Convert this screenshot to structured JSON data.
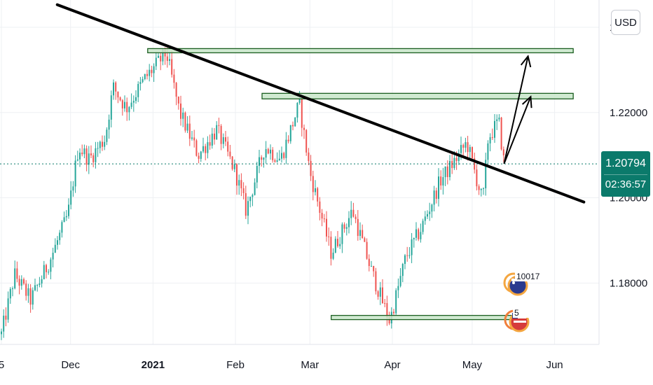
{
  "currency": "USD",
  "current_price": {
    "label": "1.20794",
    "countdown": "02:36:57",
    "color": "#0b7a6b"
  },
  "event_badges": [
    {
      "name": "event-badge-1",
      "count": "10017",
      "flag": "US"
    },
    {
      "name": "event-badge-2",
      "count": "5",
      "flag": "US"
    }
  ],
  "colors": {
    "candle_up": "#26a69a",
    "candle_down": "#ef5350",
    "trendline": "#000000",
    "zone_fill": "#c8e6c9",
    "zone_border": "#1b5e20",
    "grid": "#eef0f3"
  },
  "chart_data": {
    "type": "candlestick",
    "instrument_quote": "USD",
    "y_ticks": [
      "1.2…0",
      "1.22000",
      "1.20000",
      "1.18000"
    ],
    "ylim": [
      1.1656,
      1.2464
    ],
    "x_ticks": [
      "5",
      "Dec",
      "2021",
      "Feb",
      "Mar",
      "Apr",
      "May",
      "Jun"
    ],
    "grid": true,
    "last_price": 1.20794,
    "price_path": [
      {
        "date": "2020-11-05",
        "price": 1.168
      },
      {
        "date": "2020-11-10",
        "price": 1.182
      },
      {
        "date": "2020-11-16",
        "price": 1.176
      },
      {
        "date": "2020-11-23",
        "price": 1.185
      },
      {
        "date": "2020-11-30",
        "price": 1.196
      },
      {
        "date": "2020-12-04",
        "price": 1.212
      },
      {
        "date": "2020-12-08",
        "price": 1.209
      },
      {
        "date": "2020-12-14",
        "price": 1.214
      },
      {
        "date": "2020-12-17",
        "price": 1.226
      },
      {
        "date": "2020-12-22",
        "price": 1.221
      },
      {
        "date": "2020-12-29",
        "price": 1.228
      },
      {
        "date": "2021-01-06",
        "price": 1.234
      },
      {
        "date": "2021-01-11",
        "price": 1.22
      },
      {
        "date": "2021-01-18",
        "price": 1.21
      },
      {
        "date": "2021-01-25",
        "price": 1.216
      },
      {
        "date": "2021-02-01",
        "price": 1.206
      },
      {
        "date": "2021-02-05",
        "price": 1.197
      },
      {
        "date": "2021-02-12",
        "price": 1.212
      },
      {
        "date": "2021-02-18",
        "price": 1.209
      },
      {
        "date": "2021-02-25",
        "price": 1.222
      },
      {
        "date": "2021-03-01",
        "price": 1.206
      },
      {
        "date": "2021-03-09",
        "price": 1.187
      },
      {
        "date": "2021-03-17",
        "price": 1.197
      },
      {
        "date": "2021-03-24",
        "price": 1.183
      },
      {
        "date": "2021-03-31",
        "price": 1.171
      },
      {
        "date": "2021-04-06",
        "price": 1.186
      },
      {
        "date": "2021-04-12",
        "price": 1.193
      },
      {
        "date": "2021-04-19",
        "price": 1.204
      },
      {
        "date": "2021-04-26",
        "price": 1.21
      },
      {
        "date": "2021-04-29",
        "price": 1.213
      },
      {
        "date": "2021-05-05",
        "price": 1.199
      },
      {
        "date": "2021-05-07",
        "price": 1.214
      },
      {
        "date": "2021-05-11",
        "price": 1.218
      },
      {
        "date": "2021-05-13",
        "price": 1.20794
      }
    ],
    "drawings": {
      "trendline": [
        {
          "date": "2020-11-26",
          "price": 1.2453
        },
        {
          "date": "2021-06-12",
          "price": 1.199
        }
      ],
      "zones": [
        {
          "from": "2020-12-30",
          "to": "2021-06-08",
          "low": 1.2342,
          "high": 1.235
        },
        {
          "from": "2021-02-11",
          "to": "2021-06-08",
          "low": 1.2232,
          "high": 1.2245
        },
        {
          "from": "2021-03-09",
          "to": "2021-05-16",
          "low": 1.1716,
          "high": 1.1724
        }
      ],
      "arrows": [
        {
          "from_date": "2021-05-13",
          "from_price": 1.208,
          "to_date": "2021-05-22",
          "to_price": 1.2332
        },
        {
          "from_date": "2021-05-13",
          "from_price": 1.208,
          "to_date": "2021-05-23",
          "to_price": 1.2237
        }
      ]
    }
  }
}
